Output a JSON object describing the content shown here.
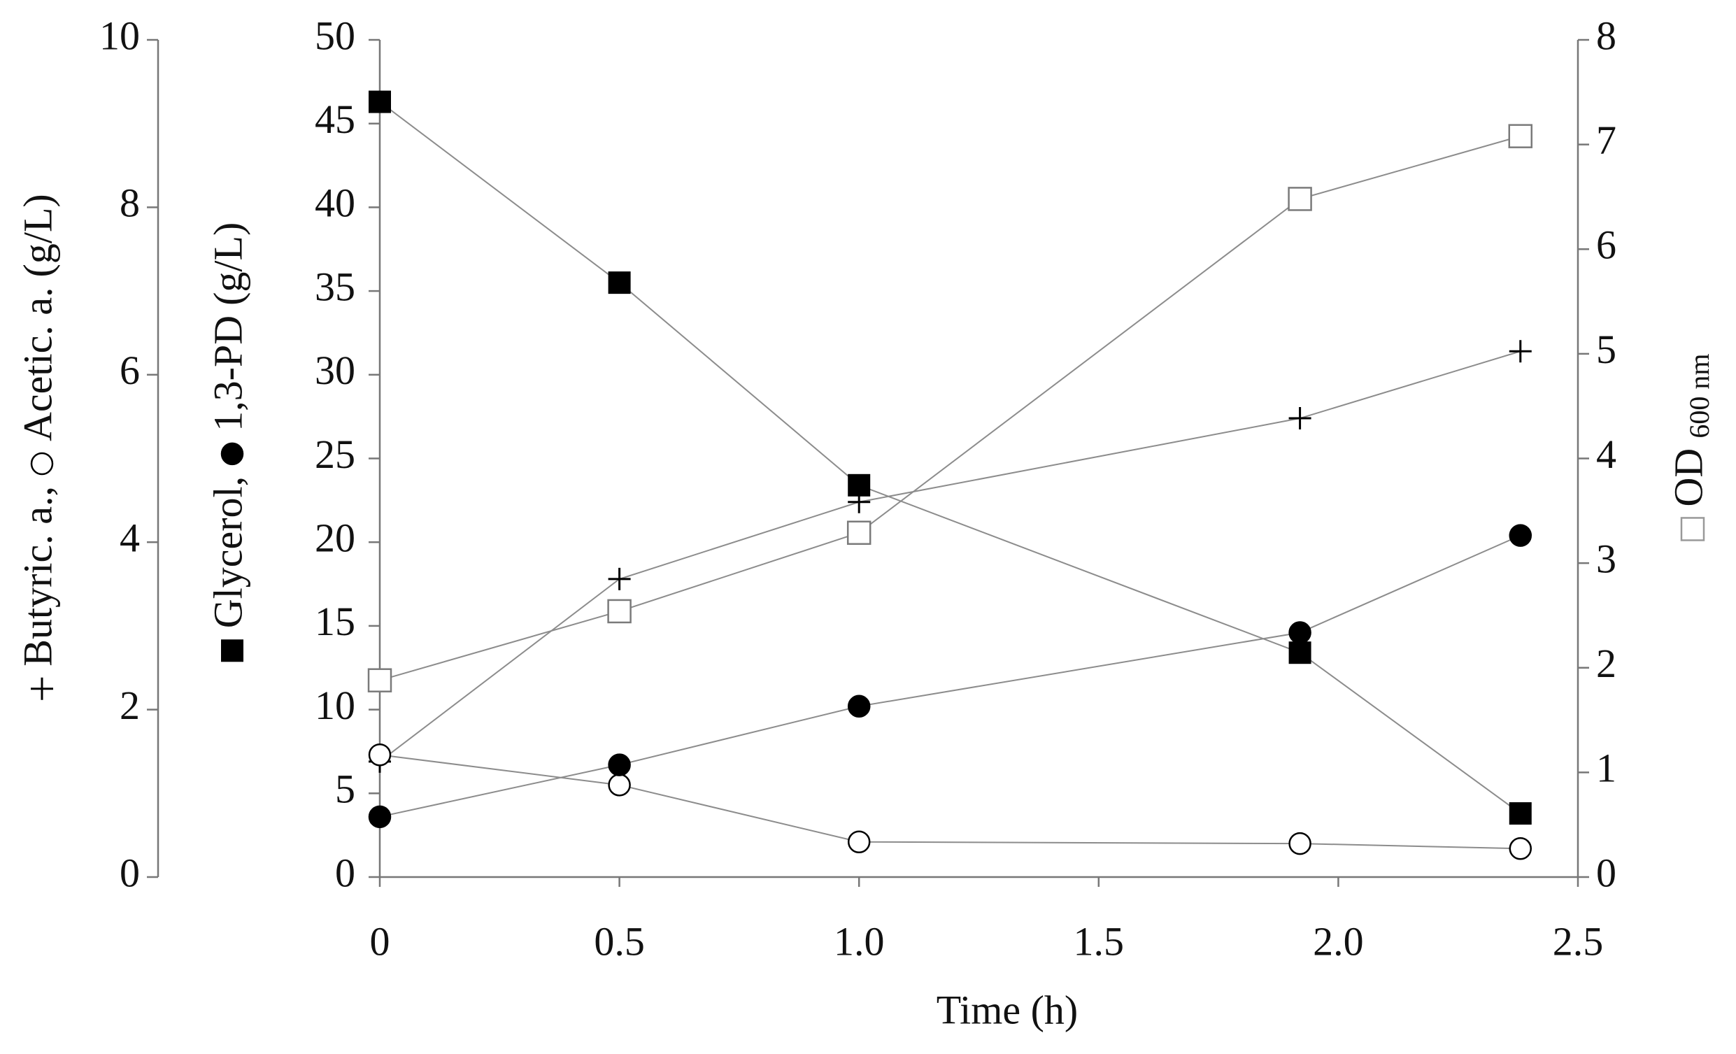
{
  "chart_data": {
    "type": "line",
    "xlabel": "Time (h)",
    "x": [
      0,
      0.5,
      1.0,
      1.92,
      2.38
    ],
    "xlim": [
      0,
      2.5
    ],
    "xticks": [
      0,
      0.5,
      {
        "value": 1,
        "label": "1.0"
      },
      1.5,
      {
        "value": 2,
        "label": "2.0"
      },
      2.5
    ],
    "ylim": [
      0,
      50
    ],
    "yticks": [
      0,
      5,
      10,
      15,
      20,
      25,
      30,
      35,
      40,
      45,
      50
    ],
    "ylabel": "(g/L)",
    "y2lim": [
      0,
      8
    ],
    "y2ticks": [
      0,
      1,
      2,
      3,
      4,
      5,
      6,
      7,
      8
    ],
    "y2label": "600 nm",
    "y3lim": [
      0,
      10
    ],
    "y3ticks": [
      0,
      2,
      4,
      6,
      8,
      10
    ],
    "y3label": "(g/L)",
    "line_color": "#8c8c8c",
    "series": [
      {
        "name": "Butyric. a.,",
        "axis": "y3",
        "marker": "plus",
        "color": "#000000",
        "values": [
          1.38,
          3.56,
          4.48,
          5.48,
          6.28
        ]
      },
      {
        "name": "Acetic. a.",
        "axis": "y3",
        "marker": "circle-open",
        "color": "#000000",
        "values": [
          1.46,
          1.1,
          0.42,
          0.4,
          0.34
        ]
      },
      {
        "name": "Glycerol,",
        "axis": "y",
        "marker": "square",
        "color": "#000000",
        "values": [
          46.3,
          35.5,
          23.4,
          13.4,
          3.8
        ]
      },
      {
        "name": "1,3-PD",
        "axis": "y",
        "marker": "circle",
        "color": "#000000",
        "values": [
          3.6,
          6.7,
          10.2,
          14.6,
          20.4
        ]
      },
      {
        "name": "OD",
        "axis": "y2",
        "marker": "square-open",
        "color": "#7a7a7a",
        "values": [
          1.88,
          2.54,
          3.29,
          6.48,
          7.08
        ]
      }
    ]
  }
}
